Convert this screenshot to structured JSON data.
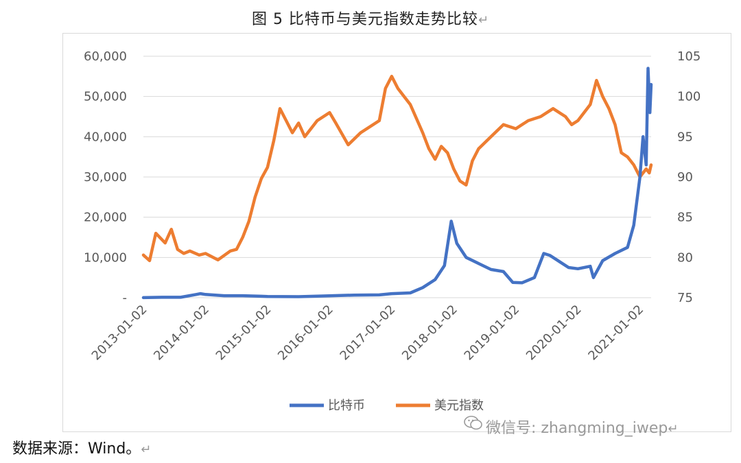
{
  "title": {
    "text": "图 5    比特币与美元指数走势比较",
    "return_mark": "↵"
  },
  "source": {
    "text": "数据来源：Wind。",
    "return_mark": "↵"
  },
  "watermark": {
    "text": "微信号: zhangming_iwep",
    "return_mark": "↵",
    "icon": "wechat-icon"
  },
  "colors": {
    "btc": "#4472C4",
    "dxy": "#ED7D31",
    "grid": "#d9d9d9",
    "axis_text": "#595959"
  },
  "chart_data": {
    "type": "line",
    "x_tick_labels": [
      "2013-01-02",
      "2014-01-02",
      "2015-01-02",
      "2016-01-02",
      "2017-01-02",
      "2018-01-02",
      "2019-01-02",
      "2020-01-02",
      "2021-01-02"
    ],
    "y_left": {
      "ticks": [
        "-",
        "10,000",
        "20,000",
        "30,000",
        "40,000",
        "50,000",
        "60,000"
      ],
      "lim": [
        0,
        60000
      ]
    },
    "y_right": {
      "ticks": [
        "75",
        "80",
        "85",
        "90",
        "95",
        "100",
        "105"
      ],
      "lim": [
        75,
        105
      ]
    },
    "grid": true,
    "legend_position": "bottom",
    "series": [
      {
        "name": "比特币",
        "axis": "left",
        "x": [
          2013.0,
          2013.3,
          2013.6,
          2013.85,
          2013.92,
          2014.0,
          2014.3,
          2014.6,
          2014.9,
          2015.0,
          2015.5,
          2015.9,
          2016.4,
          2016.8,
          2017.0,
          2017.3,
          2017.5,
          2017.7,
          2017.85,
          2017.96,
          2018.05,
          2018.2,
          2018.4,
          2018.6,
          2018.8,
          2018.95,
          2019.1,
          2019.3,
          2019.45,
          2019.55,
          2019.7,
          2019.85,
          2020.0,
          2020.2,
          2020.25,
          2020.4,
          2020.6,
          2020.8,
          2020.9,
          2021.0,
          2021.05,
          2021.1,
          2021.13,
          2021.16,
          2021.18
        ],
        "y": [
          13,
          100,
          100,
          800,
          1000,
          800,
          500,
          500,
          350,
          300,
          250,
          430,
          650,
          700,
          1000,
          1200,
          2500,
          4500,
          8000,
          19000,
          13500,
          10000,
          8500,
          7000,
          6500,
          3800,
          3700,
          5000,
          11000,
          10500,
          9000,
          7500,
          7200,
          7800,
          5000,
          9200,
          11000,
          12500,
          18000,
          30000,
          40000,
          33000,
          57000,
          46000,
          53000
        ]
      },
      {
        "name": "美元指数",
        "axis": "right",
        "x": [
          2013.0,
          2013.1,
          2013.2,
          2013.35,
          2013.45,
          2013.55,
          2013.65,
          2013.75,
          2013.9,
          2014.0,
          2014.2,
          2014.4,
          2014.5,
          2014.6,
          2014.7,
          2014.8,
          2014.9,
          2015.0,
          2015.1,
          2015.2,
          2015.3,
          2015.4,
          2015.5,
          2015.6,
          2015.8,
          2016.0,
          2016.1,
          2016.3,
          2016.5,
          2016.6,
          2016.8,
          2016.9,
          2017.0,
          2017.1,
          2017.2,
          2017.3,
          2017.5,
          2017.6,
          2017.7,
          2017.8,
          2017.9,
          2018.0,
          2018.1,
          2018.2,
          2018.3,
          2018.4,
          2018.6,
          2018.8,
          2019.0,
          2019.2,
          2019.4,
          2019.6,
          2019.8,
          2019.9,
          2020.0,
          2020.1,
          2020.2,
          2020.3,
          2020.4,
          2020.5,
          2020.6,
          2020.7,
          2020.8,
          2020.9,
          2021.0,
          2021.05,
          2021.1,
          2021.15,
          2021.18
        ],
        "y": [
          80.3,
          79.6,
          83.0,
          81.8,
          83.5,
          81.0,
          80.5,
          80.8,
          80.3,
          80.5,
          79.7,
          80.8,
          81.0,
          82.5,
          84.5,
          87.5,
          89.8,
          91.2,
          94.5,
          98.5,
          97.0,
          95.5,
          96.7,
          95.0,
          97.0,
          98.0,
          96.7,
          94.0,
          95.5,
          96.0,
          97.0,
          101.0,
          102.5,
          101.0,
          100.0,
          99.0,
          95.5,
          93.5,
          92.2,
          93.8,
          93.0,
          91.0,
          89.5,
          89.0,
          92.0,
          93.5,
          95.0,
          96.5,
          96.0,
          97.0,
          97.5,
          98.5,
          97.5,
          96.5,
          97.0,
          98.0,
          99.0,
          102.0,
          100.0,
          98.5,
          96.5,
          93.0,
          92.5,
          91.5,
          90.0,
          90.5,
          91.0,
          90.5,
          91.5
        ]
      }
    ]
  }
}
